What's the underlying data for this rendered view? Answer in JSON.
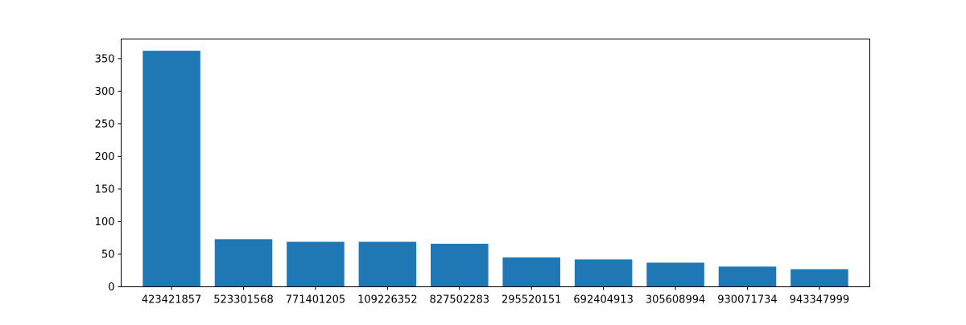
{
  "chart_data": {
    "type": "bar",
    "title": "",
    "xlabel": "",
    "ylabel": "",
    "categories": [
      "423421857",
      "523301568",
      "771401205",
      "109226352",
      "827502283",
      "295520151",
      "692404913",
      "305608994",
      "930071734",
      "943347999"
    ],
    "values": [
      362,
      73,
      69,
      69,
      66,
      45,
      42,
      37,
      31,
      27
    ],
    "ylim": [
      0,
      380
    ],
    "yticks": [
      0,
      50,
      100,
      150,
      200,
      250,
      300,
      350
    ],
    "grid": false,
    "legend": "none",
    "bar_color": "#1f77b4"
  }
}
